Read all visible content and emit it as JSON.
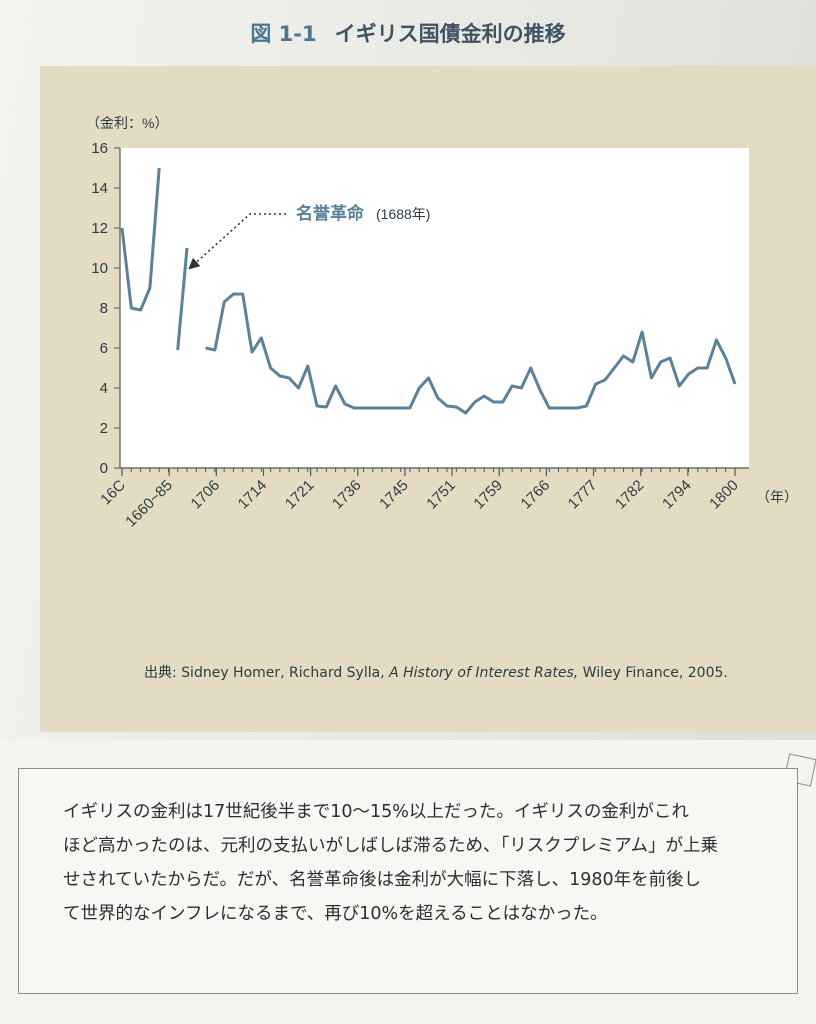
{
  "figure": {
    "number": "図 1-1",
    "title": "イギリス国債金利の推移"
  },
  "chart_data": {
    "type": "line",
    "ylabel": "（金利：%）",
    "xlabel": "（年）",
    "ylim": [
      0,
      16
    ],
    "yticks": [
      0,
      2,
      4,
      6,
      8,
      10,
      12,
      14,
      16
    ],
    "xtick_labels": [
      "16C",
      "1660~85",
      "1706",
      "1714",
      "1721",
      "1736",
      "1745",
      "1751",
      "1759",
      "1766",
      "1777",
      "1782",
      "1794",
      "1800"
    ],
    "grid": false,
    "series": [
      {
        "segments": [
          [
            [
              0,
              12
            ],
            [
              1,
              8
            ],
            [
              2,
              7.9
            ],
            [
              3,
              9
            ],
            [
              4,
              15
            ]
          ],
          [
            [
              6,
              5.9
            ],
            [
              7,
              11
            ]
          ],
          [
            [
              9,
              6
            ],
            [
              10,
              5.9
            ],
            [
              11,
              8.3
            ],
            [
              12,
              8.7
            ],
            [
              13,
              8.7
            ],
            [
              14,
              5.8
            ],
            [
              15,
              6.5
            ],
            [
              16,
              5
            ],
            [
              17,
              4.6
            ],
            [
              18,
              4.5
            ],
            [
              19,
              4
            ],
            [
              20,
              5.1
            ],
            [
              21,
              3.1
            ],
            [
              22,
              3.05
            ],
            [
              23,
              4.1
            ],
            [
              24,
              3.2
            ],
            [
              25,
              3
            ],
            [
              26,
              3
            ],
            [
              27,
              3
            ],
            [
              28,
              3
            ],
            [
              29,
              3
            ],
            [
              30,
              3
            ],
            [
              31,
              3
            ],
            [
              32,
              4
            ],
            [
              33,
              4.5
            ],
            [
              34,
              3.5
            ],
            [
              35,
              3.1
            ],
            [
              36,
              3.05
            ],
            [
              37,
              2.75
            ],
            [
              38,
              3.3
            ],
            [
              39,
              3.6
            ],
            [
              40,
              3.3
            ],
            [
              41,
              3.3
            ],
            [
              42,
              4.1
            ],
            [
              43,
              4
            ],
            [
              44,
              5
            ],
            [
              45,
              3.9
            ],
            [
              46,
              3
            ],
            [
              47,
              3
            ],
            [
              48,
              3
            ],
            [
              49,
              3
            ],
            [
              50,
              3.1
            ],
            [
              51,
              4.2
            ],
            [
              52,
              4.4
            ],
            [
              53,
              5
            ],
            [
              54,
              5.6
            ],
            [
              55,
              5.3
            ],
            [
              56,
              6.8
            ],
            [
              57,
              4.5
            ],
            [
              58,
              5.3
            ],
            [
              59,
              5.5
            ],
            [
              60,
              4.1
            ],
            [
              61,
              4.7
            ],
            [
              62,
              5
            ],
            [
              63,
              5
            ],
            [
              64,
              6.4
            ],
            [
              65,
              5.5
            ],
            [
              66,
              4.2
            ]
          ]
        ]
      }
    ],
    "annotation": {
      "label": "名誉革命",
      "sublabel": "(1688年)"
    }
  },
  "source": {
    "prefix": "出典: Sidney Homer, Richard Sylla, ",
    "title": "A History of Interest Rates,",
    "suffix": " Wiley Finance, 2005."
  },
  "note": {
    "lines": [
      "イギリスの金利は17世紀後半まで10〜15%以上だった。イギリスの金利がこれ",
      "ほど高かったのは、元利の支払いがしばしば滞るため、「リスクプレミアム」が上乗",
      "せされていたからだ。だが、名誉革命後は金利が大幅に下落し、1980年を前後し",
      "て世界的なインフレになるまで、再び10%を超えることはなかった。"
    ]
  },
  "colors": {
    "line": "#5a8299",
    "panel": "#e3dcc2",
    "plot_bg": "#ffffff",
    "title_accent": "#4a7890"
  }
}
